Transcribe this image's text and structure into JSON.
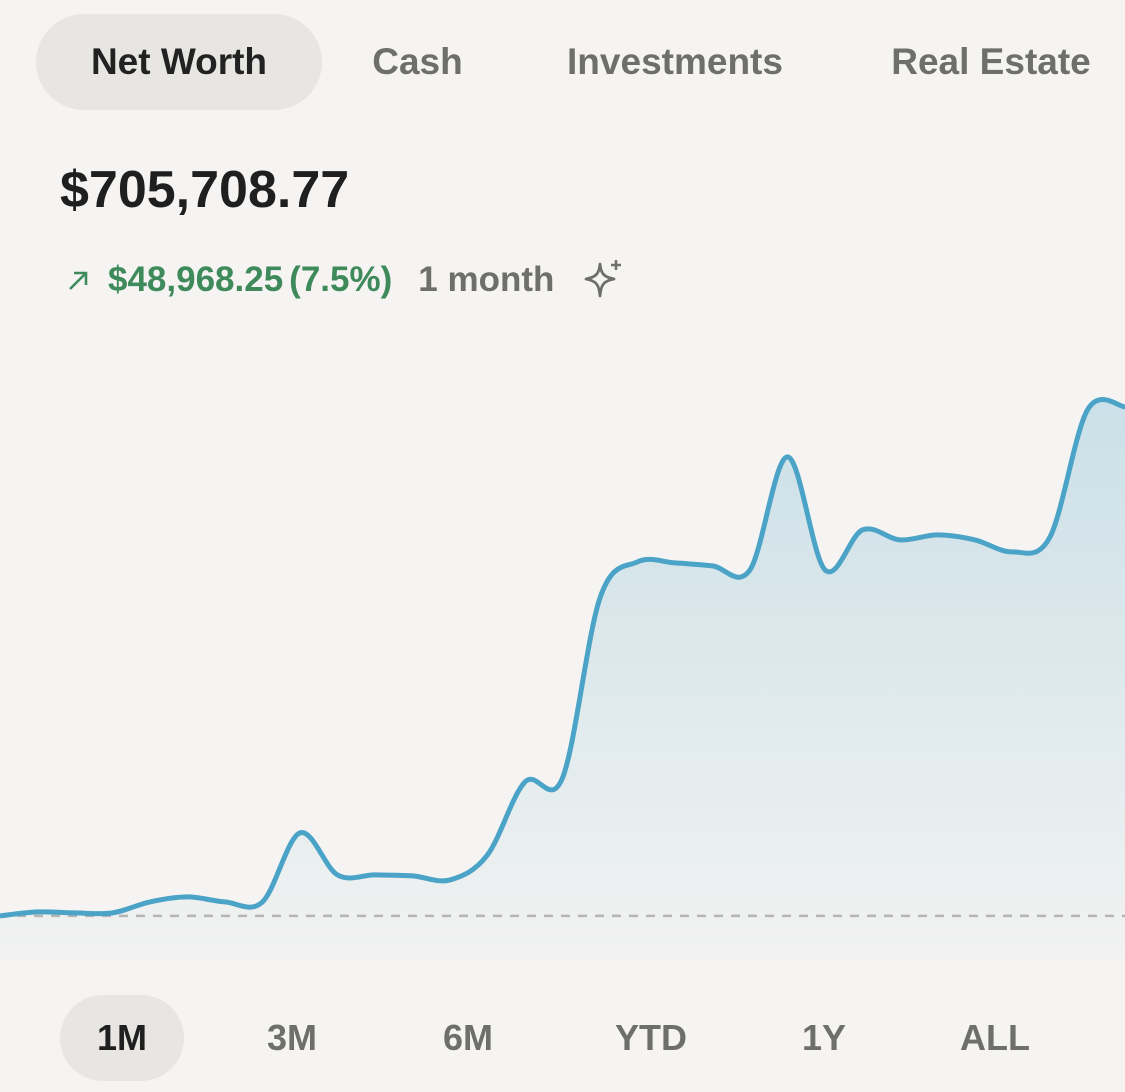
{
  "tabs": [
    {
      "label": "Net Worth",
      "active": true
    },
    {
      "label": "Cash",
      "active": false
    },
    {
      "label": "Investments",
      "active": false
    },
    {
      "label": "Real Estate",
      "active": false
    }
  ],
  "balance": "$705,708.77",
  "change": {
    "amount": "$48,968.25",
    "percent": "(7.5%)",
    "period": "1 month"
  },
  "chart_data": {
    "type": "line",
    "color": "#4ba3c7",
    "values": [
      656741,
      657125,
      657030,
      657030,
      658087,
      658569,
      658087,
      658087,
      664725,
      660685,
      660685,
      660589,
      660204,
      662609,
      669631,
      670016,
      687332,
      690795,
      690699,
      690410,
      690026,
      700896,
      690026,
      693874,
      692911,
      693393,
      692911,
      691757,
      693200,
      705417,
      705709
    ],
    "ylim": [
      652500,
      713100
    ]
  },
  "ranges": [
    {
      "label": "1M",
      "active": true
    },
    {
      "label": "3M",
      "active": false
    },
    {
      "label": "6M",
      "active": false
    },
    {
      "label": "YTD",
      "active": false
    },
    {
      "label": "1Y",
      "active": false
    },
    {
      "label": "ALL",
      "active": false
    }
  ]
}
